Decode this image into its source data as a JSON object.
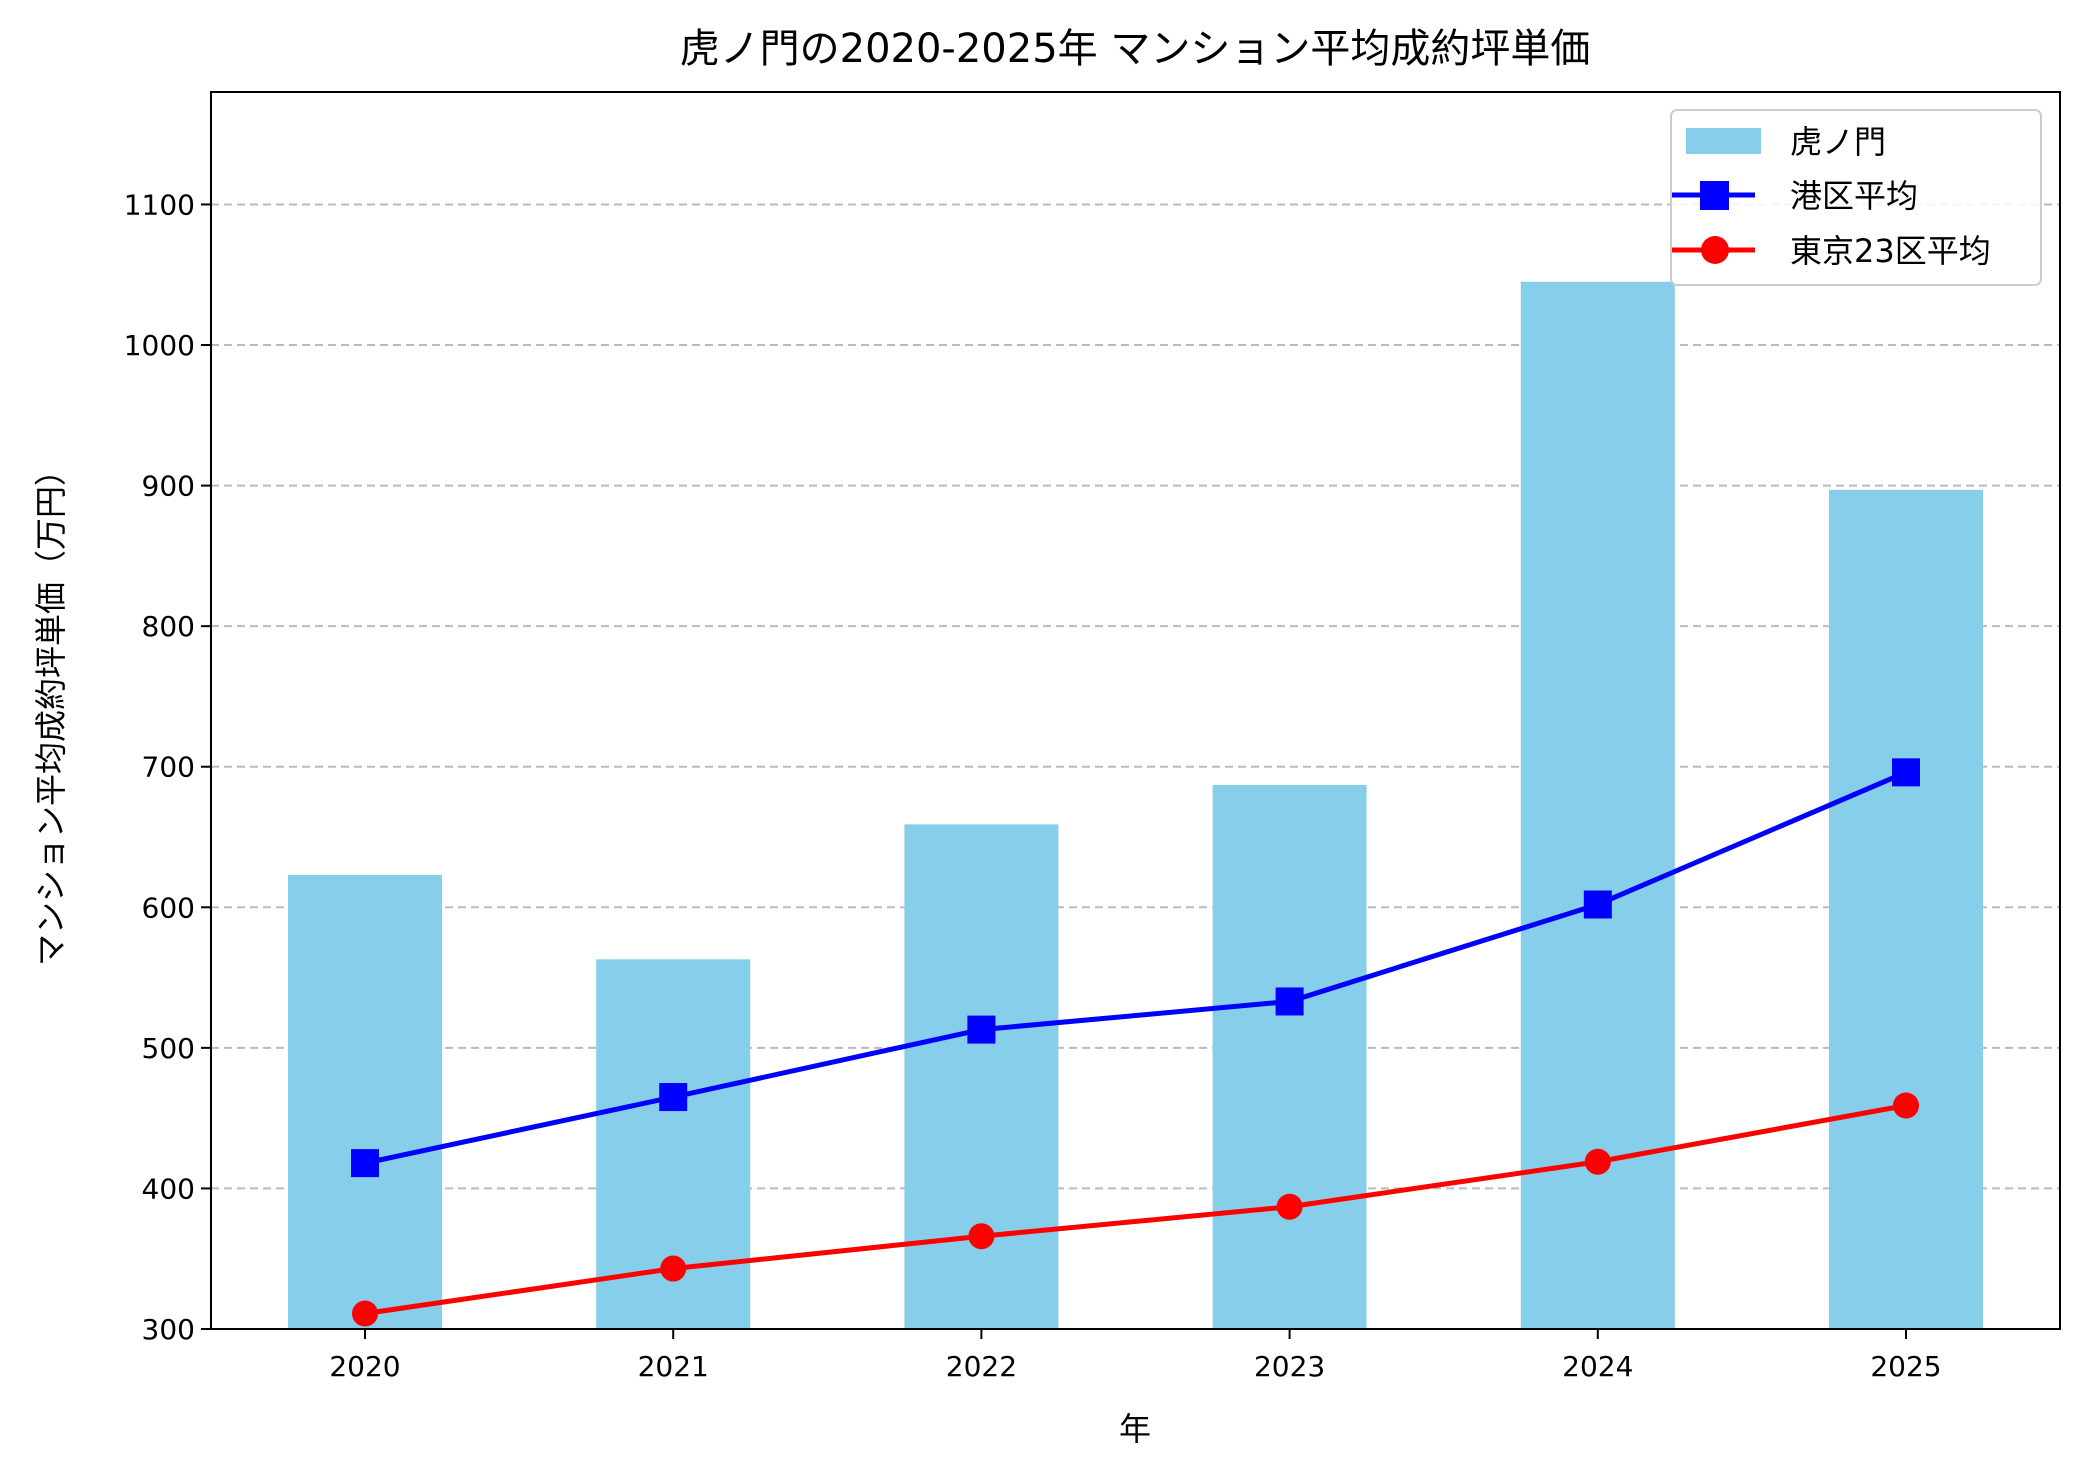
{
  "chart_data": {
    "type": "bar+line",
    "title": "虎ノ門の2020-2025年 マンション平均成約坪単価",
    "xlabel": "年",
    "ylabel": "マンション平均成約坪単価（万円）",
    "categories": [
      "2020",
      "2021",
      "2022",
      "2023",
      "2024",
      "2025"
    ],
    "ylim": [
      300,
      1180
    ],
    "yticks": [
      300,
      400,
      500,
      600,
      700,
      800,
      900,
      1000,
      1100
    ],
    "grid": "y-dashed",
    "legend_position": "top-right",
    "series": [
      {
        "name": "虎ノ門",
        "type": "bar",
        "color": "#87CEEB",
        "values": [
          623,
          563,
          659,
          687,
          1045,
          897
        ]
      },
      {
        "name": "港区平均",
        "type": "line",
        "marker": "square",
        "color": "#0000FF",
        "values": [
          418,
          465,
          513,
          533,
          602,
          696
        ]
      },
      {
        "name": "東京23区平均",
        "type": "line",
        "marker": "circle",
        "color": "#FF0000",
        "values": [
          311,
          343,
          366,
          387,
          419,
          459
        ]
      }
    ]
  }
}
